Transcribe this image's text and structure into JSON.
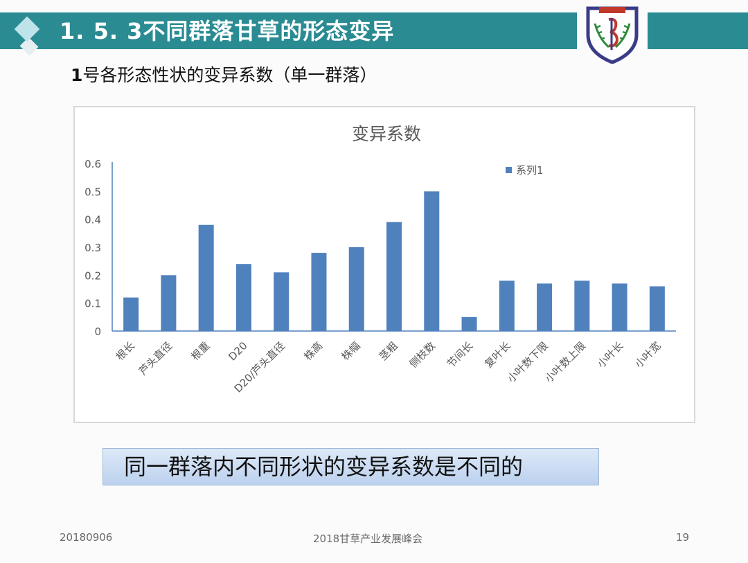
{
  "slide": {
    "title": "1. 5. 3不同群落甘草的形态变异",
    "subtitle_bold": "1",
    "subtitle_rest": "号各形态性状的变异系数（单一群落）",
    "conclusion": "同一群落内不同形状的变异系数是不同的",
    "footer_left": "20180906",
    "footer_center": "2018甘草产业发展峰会",
    "footer_right": "19",
    "accent_color": "#2a8b92",
    "logo_icon": "university-crest-icon"
  },
  "chart_data": {
    "type": "bar",
    "title": "变异系数",
    "categories": [
      "根长",
      "芦头直径",
      "根重",
      "D20",
      "D20/芦头直径",
      "株高",
      "株幅",
      "茎粗",
      "侧枝数",
      "节间长",
      "复叶长",
      "小叶数下限",
      "小叶数上限",
      "小叶长",
      "小叶宽"
    ],
    "series": [
      {
        "name": "系列1",
        "values": [
          0.12,
          0.2,
          0.38,
          0.24,
          0.21,
          0.28,
          0.3,
          0.39,
          0.5,
          0.05,
          0.18,
          0.17,
          0.18,
          0.17,
          0.16
        ]
      }
    ],
    "ylim": [
      0,
      0.6
    ],
    "yticks": [
      "0",
      "0.1",
      "0.2",
      "0.3",
      "0.4",
      "0.5",
      "0.6"
    ],
    "grid": false,
    "legend": "top-right",
    "bar_color": "#4f81bd"
  }
}
